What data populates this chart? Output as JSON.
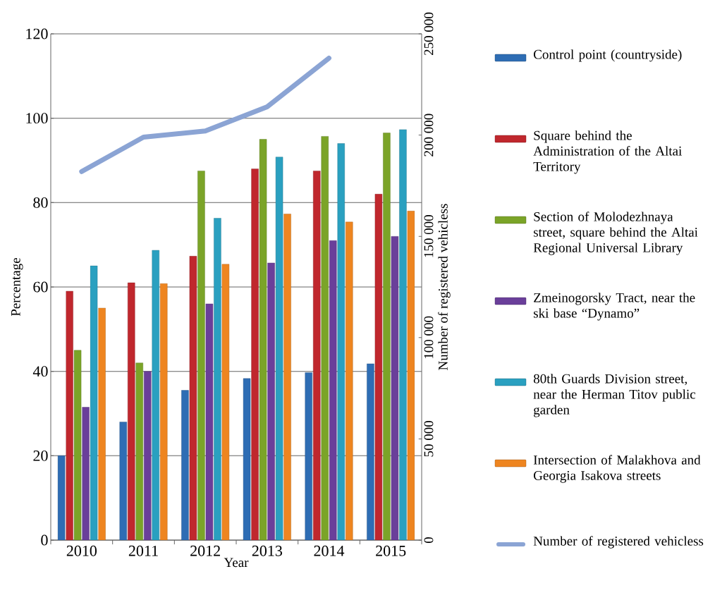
{
  "chart_data": {
    "type": "bar",
    "xlabel": "Year",
    "ylabel": "Percentage",
    "y2label": "Number of registered vehicless",
    "categories": [
      "2010",
      "2011",
      "2012",
      "2013",
      "2014",
      "2015"
    ],
    "ylim": [
      0,
      120
    ],
    "yticks": [
      0,
      20,
      40,
      60,
      80,
      100,
      120
    ],
    "y2lim": [
      0,
      250000
    ],
    "y2ticks": [
      {
        "value": 0,
        "label": "0"
      },
      {
        "value": 50000,
        "label": "50 000"
      },
      {
        "value": 100000,
        "label": "100 000"
      },
      {
        "value": 150000,
        "label": "150 000"
      },
      {
        "value": 200000,
        "label": "200 000"
      },
      {
        "value": 250000,
        "label": "250 000"
      }
    ],
    "grid": "y",
    "legend": "right",
    "series": [
      {
        "name": "Control point (countryside)",
        "color": "#2e6db4",
        "values": [
          20,
          28,
          35.5,
          38.3,
          39.7,
          41.8
        ]
      },
      {
        "name": "Square behind the Administration of the Altai Territory",
        "color": "#c0272d",
        "values": [
          59,
          61,
          67.3,
          88,
          87.5,
          82
        ]
      },
      {
        "name": "Section of Molodezhnaya street, square behind the Altai Regional Universal Library",
        "color": "#7ba428",
        "values": [
          45,
          42,
          87.5,
          95,
          95.7,
          96.5
        ]
      },
      {
        "name": "Zmeinogorsky Tract, near the ski base “Dynamo”",
        "color": "#6a3f9a",
        "values": [
          31.5,
          40,
          56,
          65.7,
          71,
          72
        ]
      },
      {
        "name": "80th Guards Division street, near the Herman Titov public garden",
        "color": "#2aa0c0",
        "values": [
          65,
          68.7,
          76.3,
          90.8,
          94,
          97.3
        ]
      },
      {
        "name": "Intersection of Malakhova and Georgia Isakova streets",
        "color": "#ee8520",
        "values": [
          55,
          60.8,
          65.4,
          77.3,
          75.4,
          78
        ]
      },
      {
        "name": "Number of registered vehicless",
        "type": "line",
        "axis": "y2",
        "color": "#8ba4d4",
        "values": [
          182000,
          199000,
          202000,
          214000,
          238000,
          null
        ]
      }
    ]
  }
}
